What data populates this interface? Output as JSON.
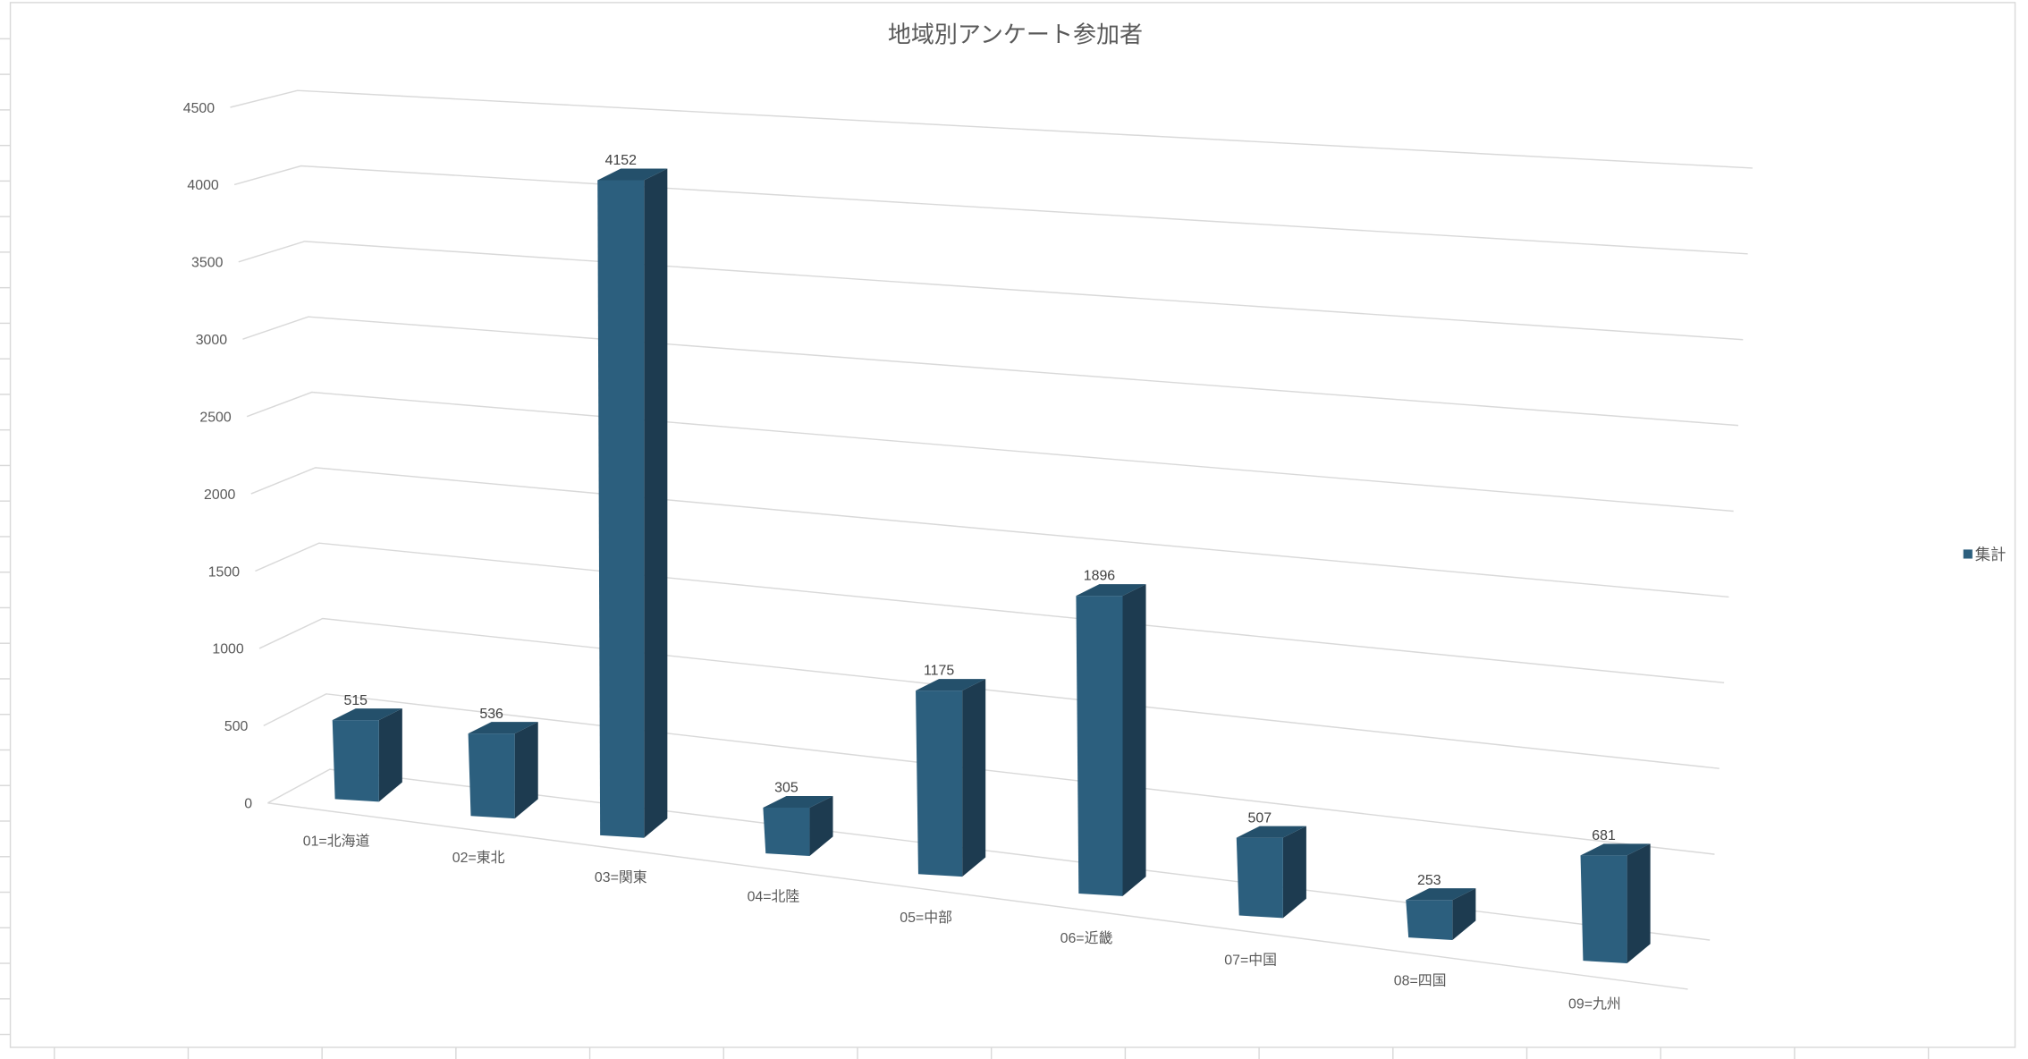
{
  "chart_data": {
    "type": "bar",
    "style": "3d-column",
    "title": "地域別アンケート参加者",
    "categories": [
      "01=北海道",
      "02=東北",
      "03=関東",
      "04=北陸",
      "05=中部",
      "06=近畿",
      "07=中国",
      "08=四国",
      "09=九州"
    ],
    "series": [
      {
        "name": "集計",
        "values": [
          515,
          536,
          4152,
          305,
          1175,
          1896,
          507,
          253,
          681
        ],
        "color": "#2c5f7e"
      }
    ],
    "data_labels": [
      "515",
      "536",
      "4152",
      "305",
      "1175",
      "1896",
      "507",
      "253",
      "681"
    ],
    "ylim": [
      0,
      4500
    ],
    "yticks": [
      "0",
      "500",
      "1000",
      "1500",
      "2000",
      "2500",
      "3000",
      "3500",
      "4000",
      "4500"
    ],
    "grid": true,
    "legend": "right",
    "colors": {
      "bar_front": "#2c5f7e",
      "bar_side": "#1d3b50",
      "bar_top": "#24506b",
      "grid": "#d9d9d9"
    }
  }
}
